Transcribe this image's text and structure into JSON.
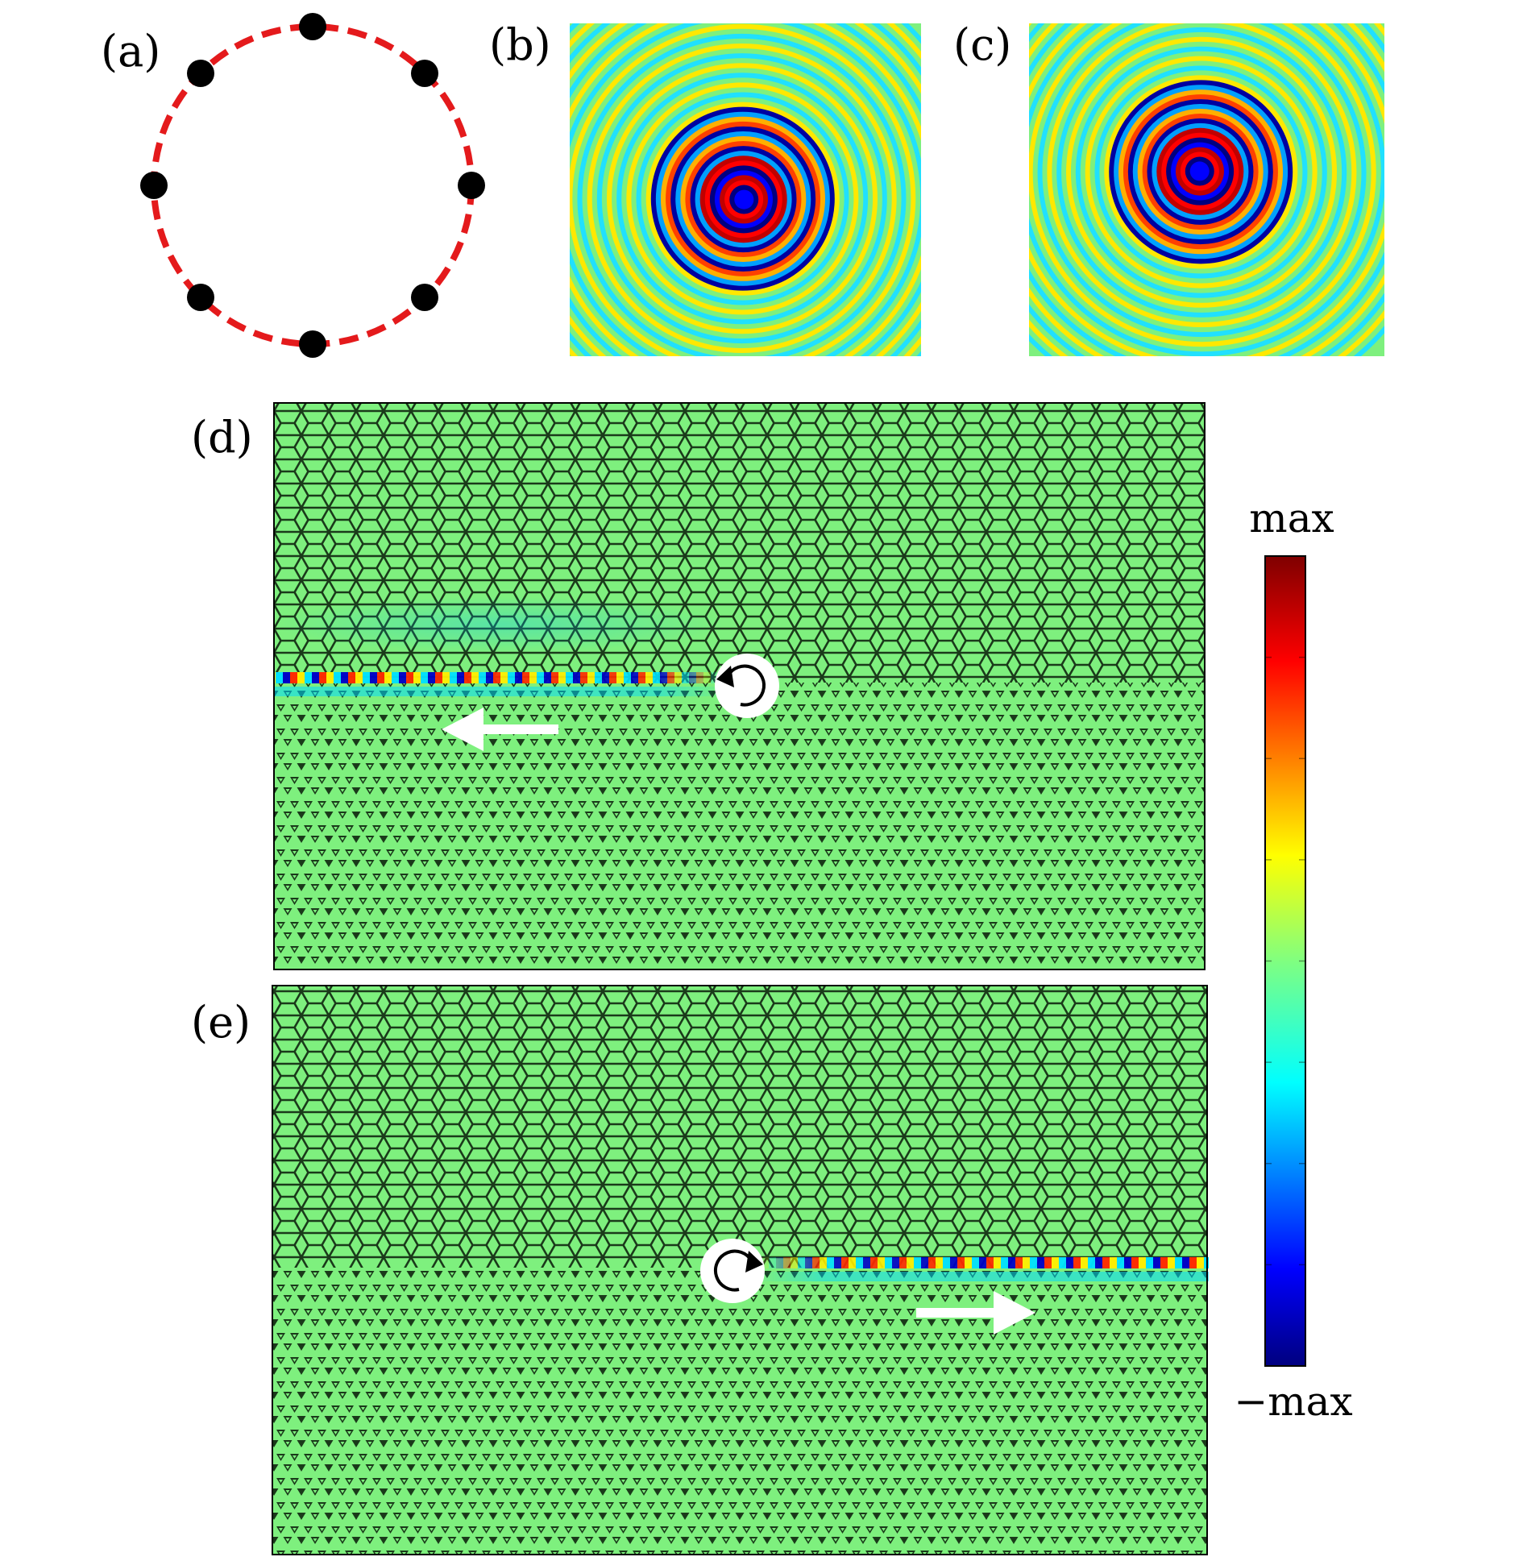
{
  "panels": {
    "a": {
      "label": "(a)"
    },
    "b": {
      "label": "(b)"
    },
    "c": {
      "label": "(c)"
    },
    "d": {
      "label": "(d)"
    },
    "e": {
      "label": "(e)"
    }
  },
  "colorbar": {
    "top_label": "max",
    "bottom_label": "−max"
  },
  "colors": {
    "ring": "#e41a1c",
    "dot": "#000000",
    "field_background": "#7ef07e",
    "arrow": "#ffffff"
  },
  "icons": {
    "source_d": "counterclockwise-rotation-icon",
    "source_e": "clockwise-rotation-icon",
    "arrow_d": "left-arrow-icon",
    "arrow_e": "right-arrow-icon"
  }
}
